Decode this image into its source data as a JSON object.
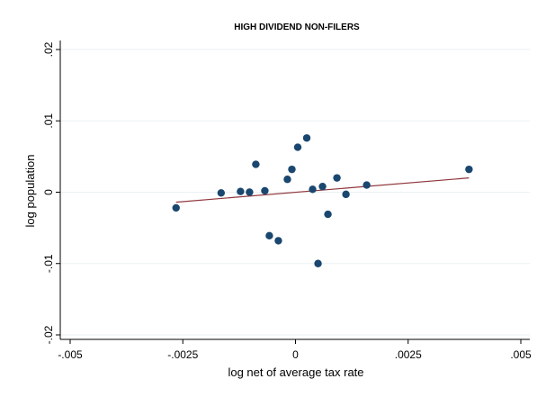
{
  "chart_data": {
    "type": "scatter",
    "title": "HIGH DIVIDEND NON-FILERS",
    "xlabel": "log net of average tax rate",
    "ylabel": "log population",
    "xlim": [
      -0.005,
      0.005
    ],
    "ylim": [
      -0.02,
      0.02
    ],
    "x_ticks": [
      -0.005,
      -0.0025,
      0,
      0.0025,
      0.005
    ],
    "x_tick_labels": [
      "-.005",
      "-.0025",
      "0",
      ".0025",
      ".005"
    ],
    "y_ticks": [
      -0.02,
      -0.01,
      0,
      0.01,
      0.02
    ],
    "y_tick_labels": [
      "-.02",
      "-.01",
      "0",
      ".01",
      ".02"
    ],
    "grid": "horizontal",
    "points": [
      {
        "x": -0.00265,
        "y": -0.0022
      },
      {
        "x": -0.00165,
        "y": -0.0001
      },
      {
        "x": -0.00122,
        "y": 0.0001
      },
      {
        "x": -0.00102,
        "y": 0.0
      },
      {
        "x": -0.00088,
        "y": 0.0039
      },
      {
        "x": -0.00068,
        "y": 0.0002
      },
      {
        "x": -0.00058,
        "y": -0.0061
      },
      {
        "x": -0.00038,
        "y": -0.0068
      },
      {
        "x": -0.00018,
        "y": 0.0018
      },
      {
        "x": -8e-05,
        "y": 0.0032
      },
      {
        "x": 5e-05,
        "y": 0.0063
      },
      {
        "x": 0.00025,
        "y": 0.0076
      },
      {
        "x": 0.00038,
        "y": 0.0004
      },
      {
        "x": 0.0005,
        "y": -0.01
      },
      {
        "x": 0.0006,
        "y": 0.0008
      },
      {
        "x": 0.00072,
        "y": -0.0031
      },
      {
        "x": 0.00092,
        "y": 0.002
      },
      {
        "x": 0.00112,
        "y": -0.0003
      },
      {
        "x": 0.00158,
        "y": 0.001
      },
      {
        "x": 0.00385,
        "y": 0.0032
      }
    ],
    "fit_line": {
      "x": [
        -0.00265,
        0.00385
      ],
      "y": [
        -0.0014,
        0.002
      ]
    },
    "colors": {
      "marker": "#1a476f",
      "fit_line": "#90353b",
      "grid": "#eaf2f3",
      "axis": "#000000"
    }
  }
}
